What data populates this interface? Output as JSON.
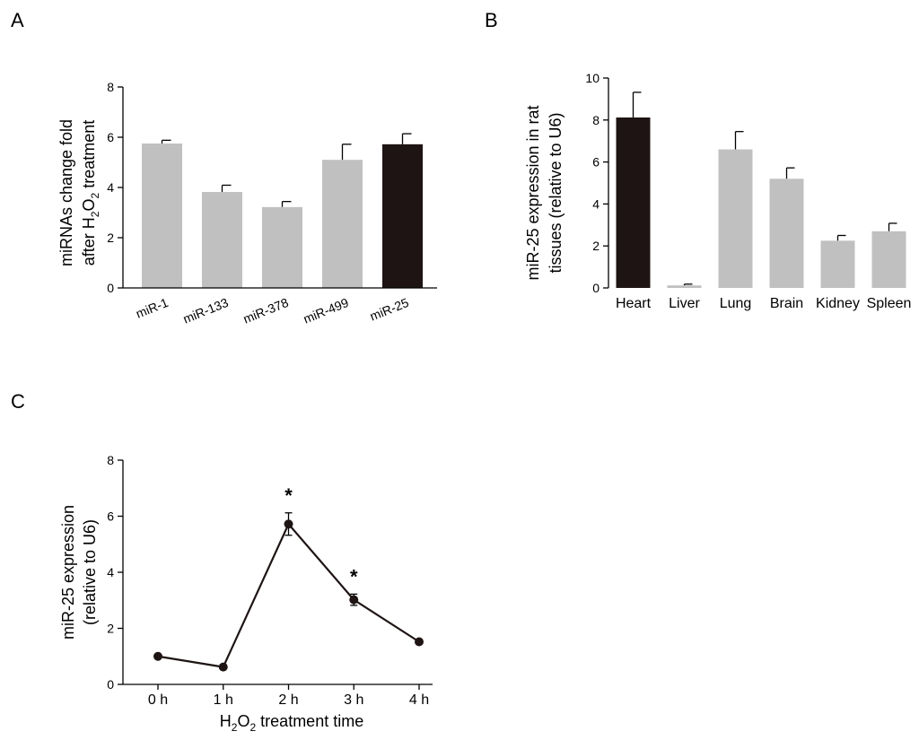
{
  "chart_data": [
    {
      "panel": "A",
      "type": "bar",
      "categories": [
        "miR-1",
        "miR-133",
        "miR-378",
        "miR-499",
        "miR-25"
      ],
      "values": [
        5.75,
        3.82,
        3.22,
        5.1,
        5.72
      ],
      "errors": [
        0.13,
        0.27,
        0.22,
        0.62,
        0.42
      ],
      "bar_colors": [
        "#c0c0c0",
        "#c0c0c0",
        "#c0c0c0",
        "#c0c0c0",
        "#1e1414"
      ],
      "ylabel_line1": "miRNAs change fold",
      "ylabel_line2": {
        "pre": "after H",
        "sub1": "2",
        "mid": "O",
        "sub2": "2",
        "post": " treatment"
      },
      "ylim": [
        0,
        8
      ],
      "yticks": [
        "0",
        "2",
        "4",
        "6",
        "8"
      ]
    },
    {
      "panel": "B",
      "type": "bar",
      "categories": [
        "Heart",
        "Liver",
        "Lung",
        "Brain",
        "Kidney",
        "Spleen"
      ],
      "values": [
        8.12,
        0.12,
        6.6,
        5.2,
        2.25,
        2.7
      ],
      "errors": [
        1.2,
        0.06,
        0.85,
        0.52,
        0.25,
        0.38
      ],
      "bar_colors": [
        "#1e1414",
        "#c0c0c0",
        "#c0c0c0",
        "#c0c0c0",
        "#c0c0c0",
        "#c0c0c0"
      ],
      "ylabel_line1": "miR-25 expression in rat",
      "ylabel_line2": "tissues (relative to U6)",
      "ylim": [
        0,
        10
      ],
      "yticks": [
        "0",
        "2",
        "4",
        "6",
        "8",
        "10"
      ]
    },
    {
      "panel": "C",
      "type": "line",
      "x": [
        "0 h",
        "1 h",
        "2 h",
        "3 h",
        "4 h"
      ],
      "values": [
        1.0,
        0.62,
        5.72,
        3.02,
        1.52
      ],
      "errors": [
        0,
        0,
        0.4,
        0.2,
        0
      ],
      "significance": [
        "",
        "",
        "*",
        "*",
        ""
      ],
      "color": "#1e1414",
      "ylabel_line1": "miR-25 expression",
      "ylabel_line2": "(relative to U6)",
      "xlabel": {
        "pre": "H",
        "sub1": "2",
        "mid": "O",
        "sub2": "2",
        "post": " treatment time"
      },
      "ylim": [
        0,
        8
      ],
      "yticks": [
        "0",
        "2",
        "4",
        "6",
        "8"
      ]
    }
  ]
}
